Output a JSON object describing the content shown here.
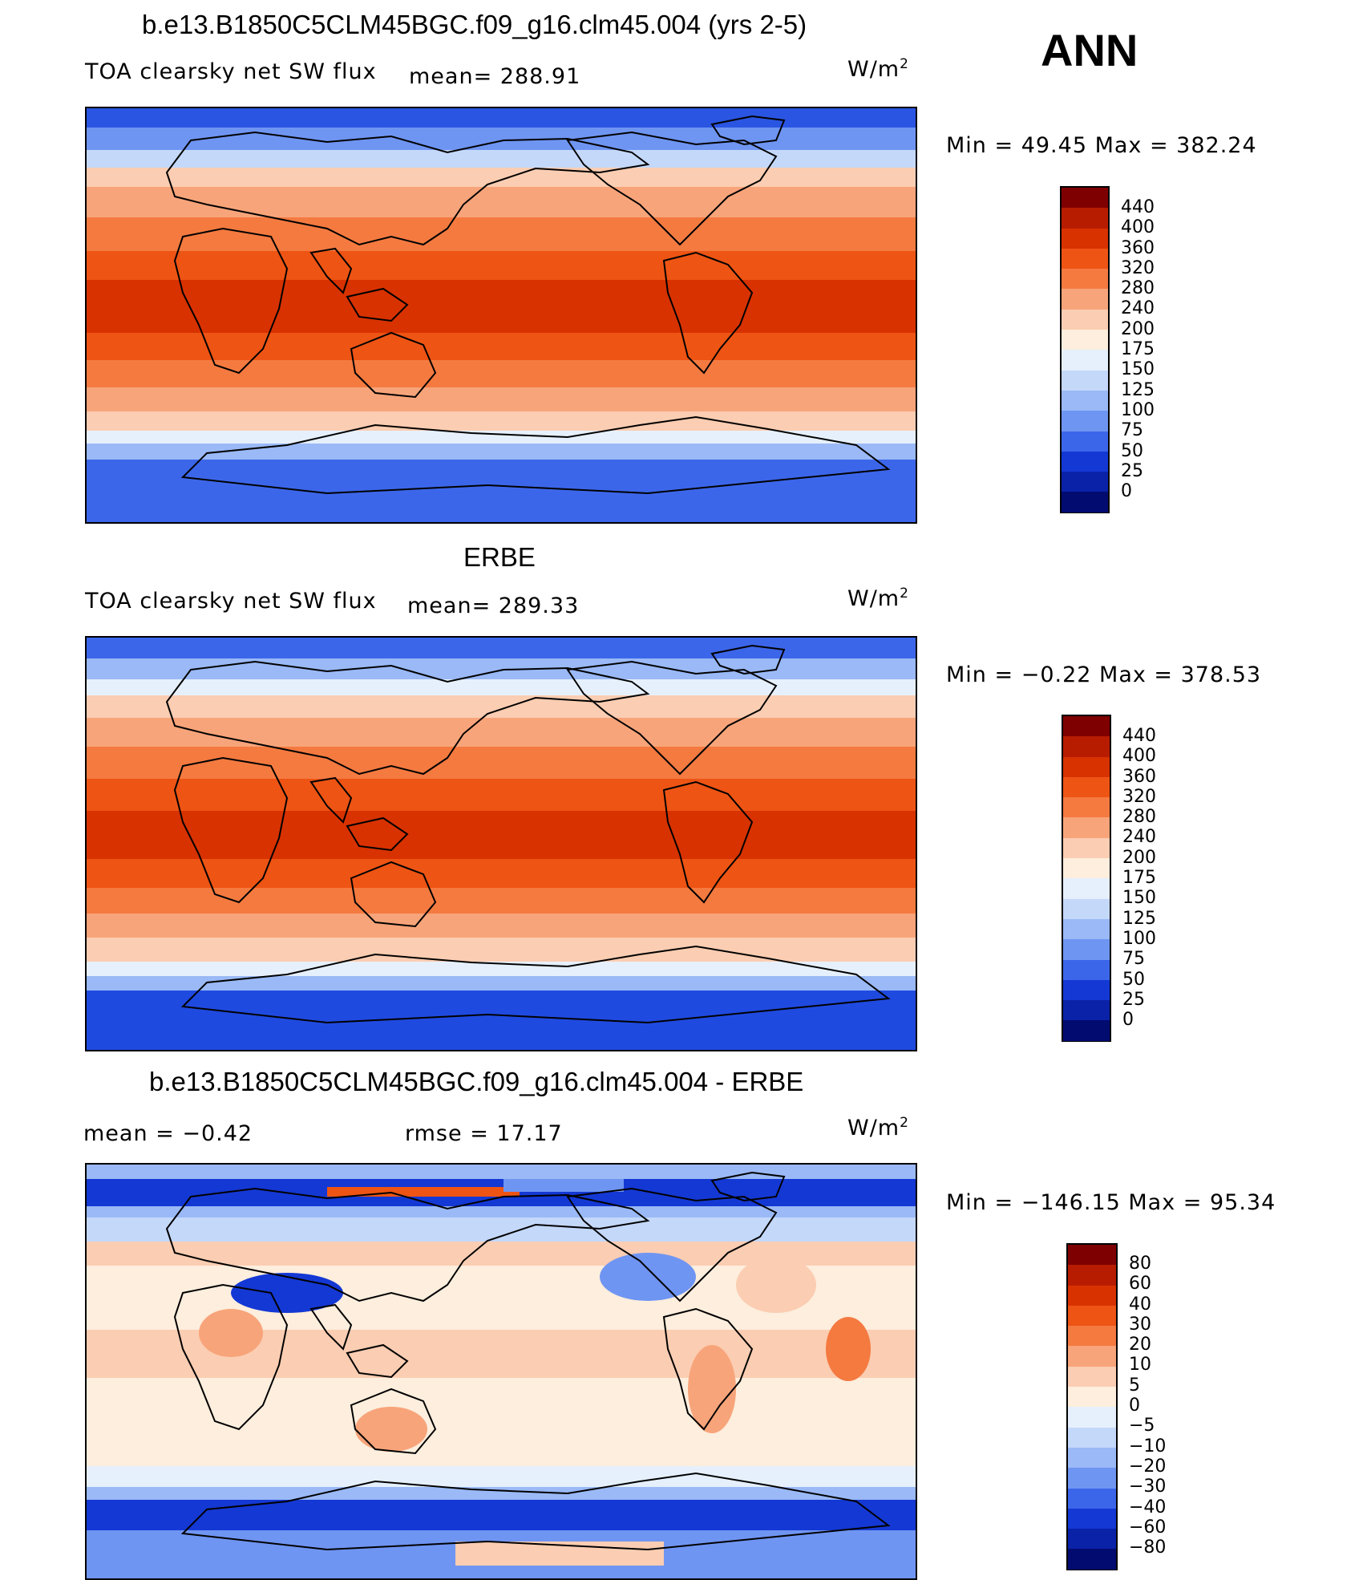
{
  "season": "ANN",
  "unit_label": "W/m",
  "unit_exp": "2",
  "panels": [
    {
      "title": "b.e13.B1850C5CLM45BGC.f09_g16.clm45.004 (yrs 2-5)",
      "left_label": "TOA clearsky net SW flux",
      "stat_label": "mean= 288.91",
      "minmax": "Min =   49.45 Max = 382.24",
      "colorbar": {
        "ticks": [
          "440",
          "400",
          "360",
          "320",
          "280",
          "240",
          "200",
          "175",
          "150",
          "125",
          "100",
          "75",
          "50",
          "25",
          "0"
        ],
        "colors": [
          "#7f0000",
          "#b81c00",
          "#d83200",
          "#ee5414",
          "#f47a40",
          "#f8a47a",
          "#fbcdb2",
          "#fdeedd",
          "#e6f0fc",
          "#c4d8fa",
          "#9ab9f6",
          "#6f95f2",
          "#3c66ea",
          "#1438d4",
          "#0a22a8",
          "#020b70"
        ]
      },
      "map_data": {
        "field": "model",
        "polar_value": 50,
        "tropical_value": 330,
        "field_range": [
          49.45,
          382.24
        ]
      }
    },
    {
      "title": "ERBE",
      "left_label": "TOA clearsky net SW flux",
      "stat_label": "mean= 289.33",
      "minmax": "Min =   −0.22 Max = 378.53",
      "colorbar": {
        "ticks": [
          "440",
          "400",
          "360",
          "320",
          "280",
          "240",
          "200",
          "175",
          "150",
          "125",
          "100",
          "75",
          "50",
          "25",
          "0"
        ],
        "colors": [
          "#7f0000",
          "#b81c00",
          "#d83200",
          "#ee5414",
          "#f47a40",
          "#f8a47a",
          "#fbcdb2",
          "#fdeedd",
          "#e6f0fc",
          "#c4d8fa",
          "#9ab9f6",
          "#6f95f2",
          "#3c66ea",
          "#1438d4",
          "#0a22a8",
          "#020b70"
        ]
      },
      "map_data": {
        "field": "obs",
        "polar_value": 40,
        "tropical_value": 330,
        "field_range": [
          -0.22,
          378.53
        ]
      }
    },
    {
      "title": "b.e13.B1850C5CLM45BGC.f09_g16.clm45.004 - ERBE",
      "mean_label": "mean =   −0.42",
      "rmse_label": "rmse =   17.17",
      "minmax": "Min = −146.15 Max =   95.34",
      "colorbar": {
        "ticks": [
          "80",
          "60",
          "40",
          "30",
          "20",
          "10",
          "5",
          "0",
          "−5",
          "−10",
          "−20",
          "−30",
          "−40",
          "−60",
          "−80"
        ],
        "colors": [
          "#7f0000",
          "#b81c00",
          "#d83200",
          "#ee5414",
          "#f47a40",
          "#f8a47a",
          "#fbcdb2",
          "#fdeedd",
          "#e6f0fc",
          "#c4d8fa",
          "#9ab9f6",
          "#6f95f2",
          "#3c66ea",
          "#1438d4",
          "#0a22a8",
          "#020b70"
        ]
      },
      "map_data": {
        "field": "difference",
        "field_range": [
          -146.15,
          95.34
        ]
      }
    }
  ]
}
